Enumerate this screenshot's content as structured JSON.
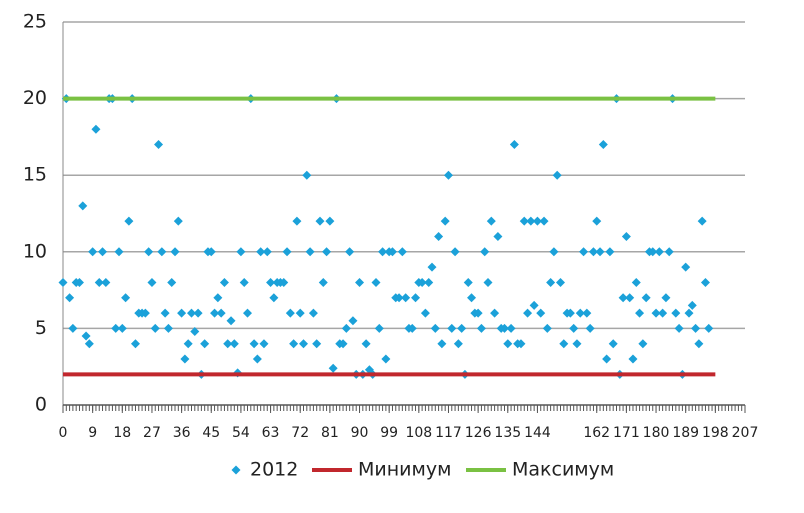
{
  "chart_data": {
    "type": "scatter",
    "xlim": [
      0,
      207
    ],
    "ylim": [
      0,
      25
    ],
    "xticks": [
      0,
      9,
      18,
      27,
      36,
      45,
      54,
      63,
      72,
      81,
      90,
      99,
      108,
      117,
      126,
      135,
      144,
      162,
      171,
      180,
      189,
      198,
      207
    ],
    "yticks": [
      0,
      5,
      10,
      15,
      20,
      25
    ],
    "x_minor_tick_interval": 1,
    "grid": true,
    "legend": "bottom",
    "series": [
      {
        "name": "2012",
        "color": "#1ba1d9",
        "mark": "diamond",
        "x": [
          0,
          1,
          2,
          3,
          4,
          5,
          6,
          7,
          8,
          9,
          10,
          11,
          12,
          13,
          14,
          15,
          16,
          17,
          18,
          19,
          20,
          21,
          22,
          23,
          24,
          25,
          26,
          27,
          28,
          29,
          30,
          31,
          32,
          33,
          34,
          35,
          36,
          37,
          38,
          39,
          40,
          41,
          42,
          43,
          44,
          45,
          46,
          47,
          48,
          49,
          50,
          51,
          52,
          53,
          54,
          55,
          56,
          57,
          58,
          59,
          60,
          61,
          62,
          63,
          64,
          65,
          66,
          67,
          68,
          69,
          70,
          71,
          72,
          73,
          74,
          75,
          76,
          77,
          78,
          79,
          80,
          81,
          82,
          83,
          84,
          85,
          86,
          87,
          88,
          89,
          90,
          91,
          92,
          93,
          94,
          95,
          96,
          97,
          98,
          99,
          100,
          101,
          102,
          103,
          104,
          105,
          106,
          107,
          108,
          109,
          110,
          111,
          112,
          113,
          114,
          115,
          116,
          117,
          118,
          119,
          120,
          121,
          122,
          123,
          124,
          125,
          126,
          127,
          128,
          129,
          130,
          131,
          132,
          133,
          134,
          135,
          136,
          137,
          138,
          139,
          140,
          141,
          142,
          143,
          144,
          145,
          146,
          147,
          148,
          149,
          150,
          151,
          152,
          153,
          154,
          155,
          156,
          157,
          158,
          159,
          160,
          161,
          162,
          163,
          164,
          165,
          166,
          167,
          168,
          169,
          170,
          171,
          172,
          173,
          174,
          175,
          176,
          177,
          178,
          179,
          180,
          181,
          182,
          183,
          184,
          185,
          186,
          187,
          188,
          189,
          190,
          191,
          192,
          193,
          194,
          195,
          196
        ],
        "values": [
          8,
          20,
          7,
          5,
          8,
          8,
          13,
          4.5,
          4,
          10,
          18,
          8,
          10,
          8,
          20,
          20,
          5,
          10,
          5,
          7,
          12,
          20,
          4,
          6,
          6,
          6,
          10,
          8,
          5,
          17,
          10,
          6,
          5,
          8,
          10,
          12,
          6,
          3,
          4,
          6,
          4.8,
          6,
          2,
          4,
          10,
          10,
          6,
          7,
          6,
          8,
          4,
          5.5,
          4,
          2.1,
          10,
          8,
          6,
          20,
          4,
          3,
          10,
          4,
          10,
          8,
          7,
          8,
          8,
          8,
          10,
          6,
          4,
          12,
          6,
          4,
          15,
          10,
          6,
          4,
          12,
          8,
          10,
          12,
          2.4,
          20,
          4,
          4,
          5,
          10,
          5.5,
          2,
          8,
          2,
          4,
          2.3,
          2,
          8,
          5,
          10,
          3,
          10,
          10,
          7,
          7,
          10,
          7,
          5,
          5,
          7,
          8,
          8,
          6,
          8,
          9,
          5,
          11,
          4,
          12,
          15,
          5,
          10,
          4,
          5,
          2,
          8,
          7,
          6,
          6,
          5,
          10,
          8,
          12,
          6,
          11,
          5,
          5,
          4,
          5,
          17,
          4,
          4,
          12,
          6,
          12,
          6.5,
          12,
          6,
          12,
          5,
          8,
          10,
          15,
          8,
          4,
          6,
          6,
          5,
          4,
          6,
          10,
          6,
          5,
          10,
          12,
          10,
          17,
          3,
          10,
          4,
          20,
          2,
          7,
          11,
          7,
          3,
          8,
          6,
          4,
          7,
          10,
          10,
          6,
          10,
          6,
          7,
          10,
          20,
          6,
          5,
          2,
          9,
          6,
          6.5,
          5,
          4,
          12,
          8,
          5
        ]
      },
      {
        "name": "Минимум",
        "color": "#c1272d",
        "mark": "line",
        "x": [
          0,
          198
        ],
        "values": [
          2,
          2
        ]
      },
      {
        "name": "Максимум",
        "color": "#7ac143",
        "mark": "line",
        "x": [
          0,
          198
        ],
        "values": [
          20,
          20
        ]
      }
    ]
  }
}
